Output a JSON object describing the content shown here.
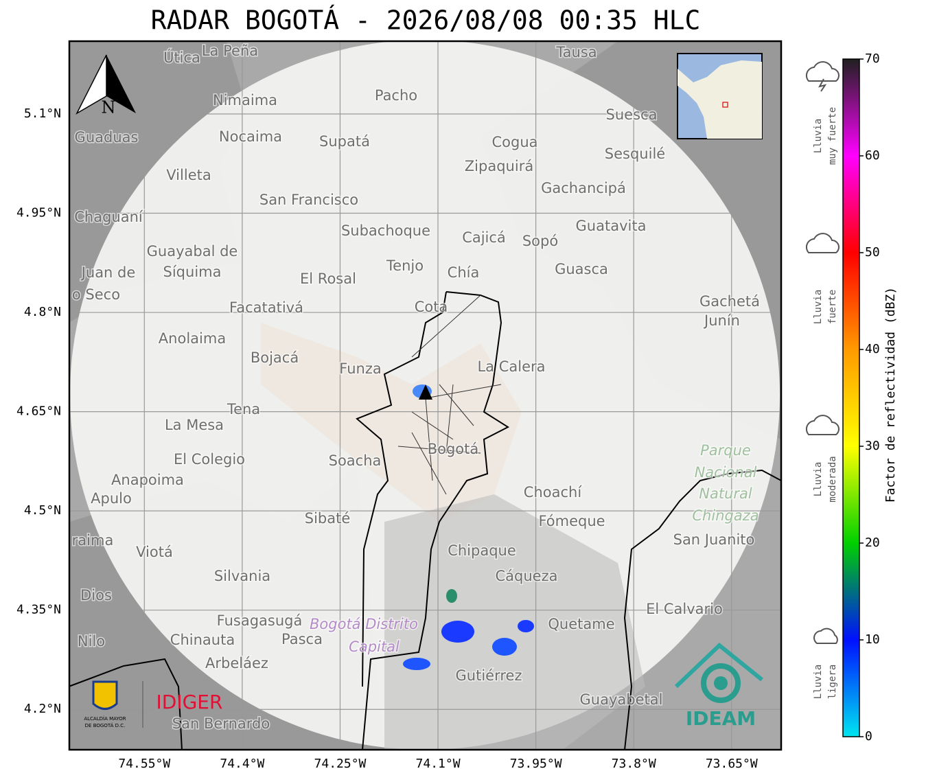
{
  "map": {
    "title": "RADAR BOGOTÁ - 2026/08/08 00:35 HLC",
    "north": "N",
    "xlim": [
      -74.665,
      -73.574
    ],
    "ylim": [
      4.139,
      5.21
    ],
    "xticks": [
      {
        "value": -74.55,
        "label": "74.55°W"
      },
      {
        "value": -74.4,
        "label": "74.4°W"
      },
      {
        "value": -74.25,
        "label": "74.25°W"
      },
      {
        "value": -74.1,
        "label": "74.1°W"
      },
      {
        "value": -73.95,
        "label": "73.95°W"
      },
      {
        "value": -73.8,
        "label": "73.8°W"
      },
      {
        "value": -73.65,
        "label": "73.65°W"
      }
    ],
    "yticks": [
      {
        "value": 5.1,
        "label": "5.1°N"
      },
      {
        "value": 4.95,
        "label": "4.95°N"
      },
      {
        "value": 4.8,
        "label": "4.8°N"
      },
      {
        "value": 4.65,
        "label": "4.65°N"
      },
      {
        "value": 4.5,
        "label": "4.5°N"
      },
      {
        "value": 4.35,
        "label": "4.35°N"
      },
      {
        "value": 4.2,
        "label": "4.2°N"
      }
    ],
    "places": [
      "La Peña",
      "Útica",
      "Tausa",
      "Pacho",
      "Nimaima",
      "Guaduas",
      "Nocaima",
      "Supatá",
      "Cogua",
      "Suesca",
      "Sesquilé",
      "Zipaquirá",
      "Villeta",
      "Gachancipá",
      "San Francisco",
      "Chaguaní",
      "Guatavita",
      "Subachoque",
      "Cajicá",
      "Sopó",
      "Guayabal de",
      "Síquima",
      "Tenjo",
      "Chía",
      "Guasca",
      "El Rosal",
      "Juan de",
      "o Seco",
      "Cota",
      "Facatativá",
      "Gachetá",
      "Junín",
      "Anolaima",
      "Bojacá",
      "Funza",
      "La Calera",
      "Tena",
      "La Mesa",
      "Bogotá",
      "Soacha",
      "El Colegio",
      "Parque",
      "Nacional",
      "Natural",
      "Chingaza",
      "Anapoima",
      "Apulo",
      "Choachí",
      "Sibaté",
      "Fómeque",
      "San Juanito",
      "Chipaque",
      "Viotá",
      "raima",
      "Silvania",
      "Cáqueza",
      "Dios",
      "El Calvario",
      "Fusagasugá",
      "Bogotá Distrito",
      "Capital",
      "Quetame",
      "Nilo",
      "Chinauta",
      "Pasca",
      "Arbeláez",
      "Gutiérrez",
      "Guayabetal",
      "San Bernardo"
    ]
  },
  "colorbar": {
    "label": "Factor de reflectividad (dBZ)",
    "ylim": [
      0,
      70
    ],
    "yticks": [
      0,
      10,
      20,
      30,
      40,
      50,
      60,
      70
    ],
    "colors": [
      "#00e5f0",
      "#0010ff",
      "#00d000",
      "#ffff00",
      "#ff9a00",
      "#ff0000",
      "#ff00ff",
      "#202020"
    ]
  },
  "legend": [
    [
      "Lluvia",
      "muy fuerte"
    ],
    [
      "Lluvia",
      "fuerte"
    ],
    [
      "Lluvia",
      "moderada"
    ],
    [
      "Lluvia",
      "ligera"
    ]
  ],
  "logos": {
    "alcaldia": [
      "ALCALDÍA MAYOR",
      "DE BOGOTÁ D.C."
    ],
    "idiger": "IDIGER",
    "ideam": "IDEAM"
  }
}
